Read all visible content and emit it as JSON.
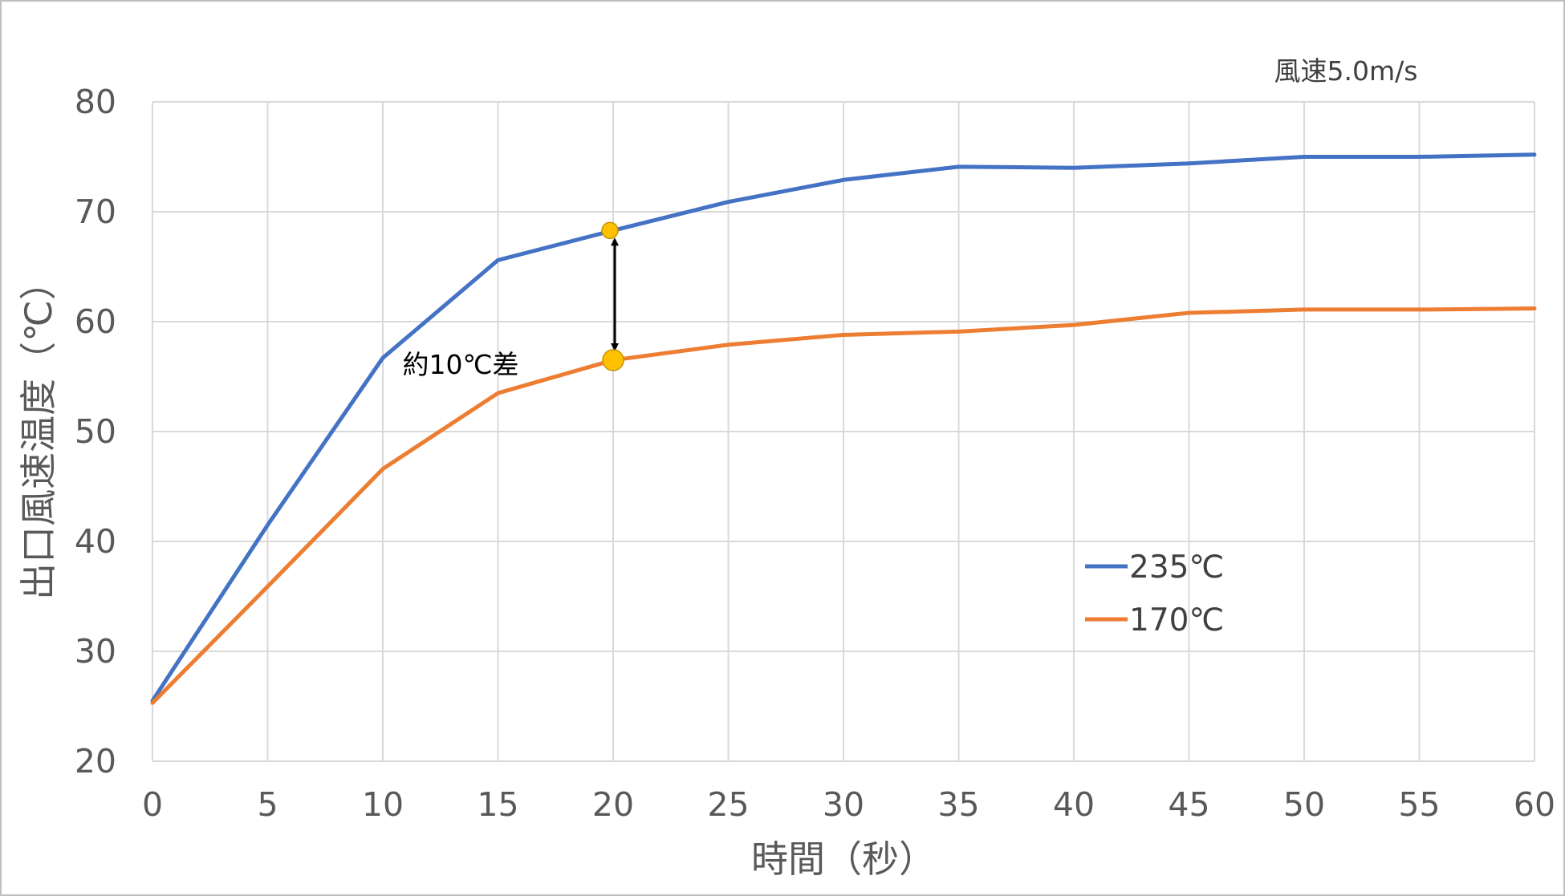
{
  "chart_data": {
    "type": "line",
    "xlabel": "時間（秒）",
    "ylabel": "出口風速温度（℃）",
    "x": [
      0,
      5,
      10,
      15,
      20,
      25,
      30,
      35,
      40,
      45,
      50,
      55,
      60
    ],
    "xlim": [
      0,
      60
    ],
    "ylim": [
      20,
      80
    ],
    "x_ticks": [
      "0",
      "5",
      "10",
      "15",
      "20",
      "25",
      "30",
      "35",
      "40",
      "45",
      "50",
      "55",
      "60"
    ],
    "y_ticks": [
      "20",
      "30",
      "40",
      "50",
      "60",
      "70",
      "80"
    ],
    "grid": true,
    "legend_position": "lower-right",
    "series": [
      {
        "name": "235℃",
        "color": "#4472C4",
        "values": [
          25.5,
          41.5,
          56.7,
          65.6,
          68.3,
          70.9,
          72.9,
          74.1,
          74.0,
          74.4,
          75.0,
          75.0,
          75.2
        ]
      },
      {
        "name": "170℃",
        "color": "#ED7D31",
        "values": [
          25.3,
          35.9,
          46.6,
          53.5,
          56.5,
          57.9,
          58.8,
          59.1,
          59.7,
          60.8,
          61.1,
          61.1,
          61.2
        ]
      }
    ],
    "annotations": [
      {
        "text": "風速5.0m/s"
      },
      {
        "text": "約10℃差"
      }
    ],
    "highlight_points": [
      {
        "x": 20,
        "y": 68.3,
        "color": "#FFC000"
      },
      {
        "x": 20,
        "y": 56.5,
        "color": "#FFC000"
      }
    ],
    "difference_arrow": {
      "x": 20,
      "y_from": 56.5,
      "y_to": 68.3
    }
  }
}
